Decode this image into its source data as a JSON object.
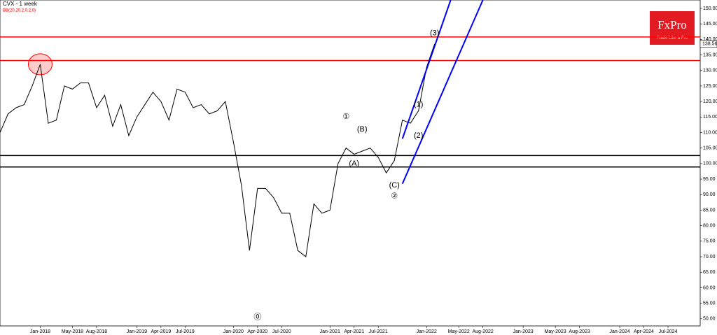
{
  "chart_data": {
    "type": "line",
    "title": "CVX - 1 week",
    "indicator": "BB(20,20,2,0,2,0)",
    "brand": {
      "name": "FxPro",
      "slogan": "Trade Like a Pro",
      "color": "#e21b23"
    },
    "x": [
      "Aug-2017",
      "Sep-2017",
      "Oct-2017",
      "Nov-2017",
      "Dec-2017",
      "Jan-2018",
      "Feb-2018",
      "Mar-2018",
      "Apr-2018",
      "May-2018",
      "Jun-2018",
      "Jul-2018",
      "Aug-2018",
      "Sep-2018",
      "Oct-2018",
      "Nov-2018",
      "Dec-2018",
      "Jan-2019",
      "Feb-2019",
      "Mar-2019",
      "Apr-2019",
      "May-2019",
      "Jun-2019",
      "Jul-2019",
      "Aug-2019",
      "Sep-2019",
      "Oct-2019",
      "Nov-2019",
      "Dec-2019",
      "Jan-2020",
      "Feb-2020",
      "Mar-2020",
      "Apr-2020",
      "May-2020",
      "Jun-2020",
      "Jul-2020",
      "Aug-2020",
      "Sep-2020",
      "Oct-2020",
      "Nov-2020",
      "Dec-2020",
      "Jan-2021",
      "Feb-2021",
      "Mar-2021",
      "Apr-2021",
      "May-2021",
      "Jun-2021",
      "Jul-2021",
      "Aug-2021",
      "Sep-2021",
      "Oct-2021",
      "Nov-2021",
      "Dec-2021",
      "Jan-2022",
      "Feb-2022"
    ],
    "series": [
      {
        "name": "CVX",
        "color": "#000000",
        "values": [
          110,
          116,
          118,
          119,
          125,
          132,
          113,
          114,
          125,
          124,
          126,
          126,
          118,
          122,
          112,
          119,
          109,
          115,
          119,
          123,
          120,
          114,
          124,
          123,
          118,
          119,
          116,
          117,
          120,
          107,
          93,
          72,
          92,
          92,
          89,
          84,
          84,
          72,
          70,
          87,
          84,
          85,
          100,
          105,
          103,
          104,
          105,
          102,
          97,
          101,
          114,
          113,
          117,
          131,
          138.56
        ]
      }
    ],
    "last_price": 138.56,
    "levels": [
      {
        "value": 140.8,
        "color": "#ff0000"
      },
      {
        "value": 133.2,
        "color": "#ff0000"
      },
      {
        "value": 102.6,
        "color": "#000000"
      },
      {
        "value": 98.9,
        "color": "#000000"
      }
    ],
    "channel": {
      "color": "#0000ff",
      "lines": [
        {
          "x": [
            "Oct-2021",
            "Apr-2022"
          ],
          "y": [
            108,
            152.7
          ]
        },
        {
          "x": [
            "Oct-2021",
            "Aug-2022"
          ],
          "y": [
            93.5,
            152.7
          ]
        }
      ]
    },
    "highlight": {
      "x": "Jan-2018",
      "y": 132,
      "color": "#ff0000"
    },
    "wave_labels": [
      {
        "text": "(3)",
        "x": "Feb-2022",
        "y": 142
      },
      {
        "text": "①",
        "x": "Mar-2021",
        "y": 115
      },
      {
        "text": "(B)",
        "x": "May-2021",
        "y": 111
      },
      {
        "text": "(A)",
        "x": "Apr-2021",
        "y": 100
      },
      {
        "text": "(C)",
        "x": "Sep-2021",
        "y": 93
      },
      {
        "text": "②",
        "x": "Sep-2021",
        "y": 89.5
      },
      {
        "text": "(1)",
        "x": "Dec-2021",
        "y": 119
      },
      {
        "text": "(2)",
        "x": "Dec-2021",
        "y": 109
      },
      {
        "text": "⓪",
        "x": "Apr-2020",
        "y": 50.5
      }
    ],
    "xlim": [
      "Aug-2017",
      "Nov-2024"
    ],
    "xticks": [
      "Jan-2018",
      "May-2018",
      "Aug-2018",
      "Jan-2019",
      "Apr-2019",
      "Jul-2019",
      "Jan-2020",
      "Apr-2020",
      "Jul-2020",
      "Jan-2021",
      "Apr-2021",
      "Jul-2021",
      "Jan-2022",
      "May-2022",
      "Aug-2022",
      "Jan-2023",
      "May-2023",
      "Aug-2023",
      "Jan-2024",
      "Apr-2024",
      "Jul-2024"
    ],
    "ylim": [
      47.7,
      152.7
    ],
    "yticks": [
      {
        "value": 50,
        "label": "50.00"
      },
      {
        "value": 55,
        "label": "55.00"
      },
      {
        "value": 60,
        "label": "60.00"
      },
      {
        "value": 65,
        "label": "65.00"
      },
      {
        "value": 70,
        "label": "70.00"
      },
      {
        "value": 75,
        "label": "75.00"
      },
      {
        "value": 80,
        "label": "80.00"
      },
      {
        "value": 85,
        "label": "85.00"
      },
      {
        "value": 90,
        "label": "90.00"
      },
      {
        "value": 95,
        "label": "95.00"
      },
      {
        "value": 100,
        "label": "100.00"
      },
      {
        "value": 105,
        "label": "105.00"
      },
      {
        "value": 110,
        "label": "110.00"
      },
      {
        "value": 115,
        "label": "115.00"
      },
      {
        "value": 120,
        "label": "120.00"
      },
      {
        "value": 125,
        "label": "125.00"
      },
      {
        "value": 130,
        "label": "130.00"
      },
      {
        "value": 135,
        "label": "135.00"
      },
      {
        "value": 140,
        "label": "140.00"
      },
      {
        "value": 145,
        "label": "145.00"
      },
      {
        "value": 150,
        "label": "150.00"
      }
    ]
  }
}
